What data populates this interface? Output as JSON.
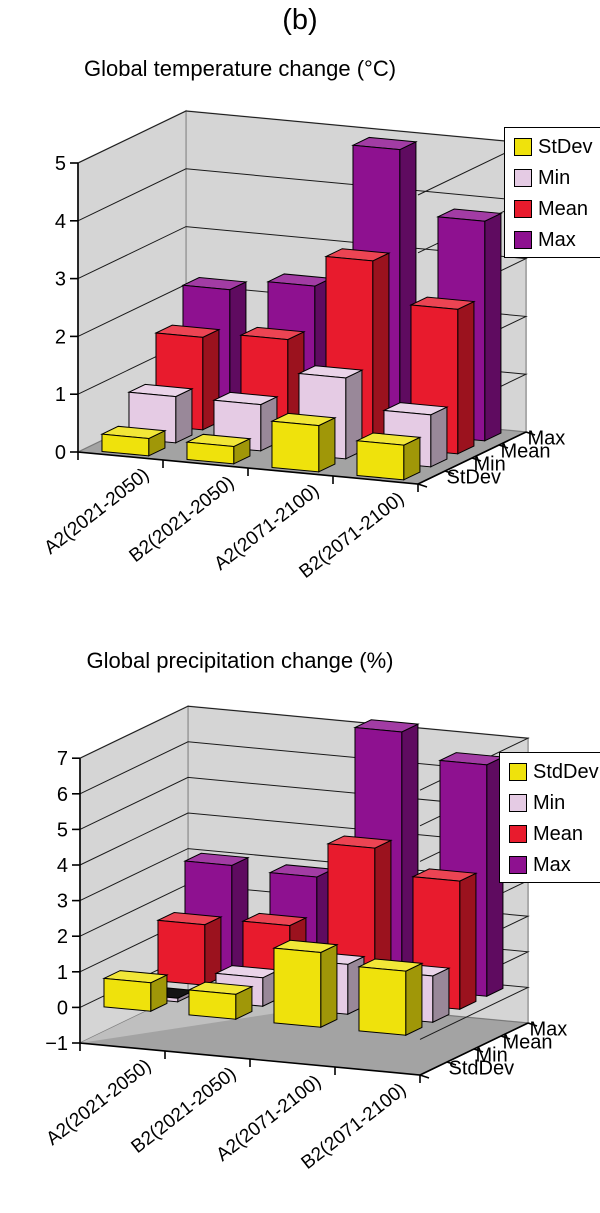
{
  "page_title": "(b)",
  "chart_data": [
    {
      "type": "bar",
      "projection": "3d",
      "title": "Global temperature change (°C)",
      "categories": [
        "A2(2021-2050)",
        "B2(2021-2050)",
        "A2(2071-2100)",
        "B2(2071-2100)"
      ],
      "series": [
        {
          "name": "StDev",
          "color": "#efe20c",
          "values": [
            0.3,
            0.3,
            0.8,
            0.6
          ]
        },
        {
          "name": "Min",
          "color": "#e5cbe4",
          "values": [
            0.8,
            0.8,
            1.4,
            0.9
          ]
        },
        {
          "name": "Mean",
          "color": "#e81b2d",
          "values": [
            1.6,
            1.7,
            3.2,
            2.5
          ]
        },
        {
          "name": "Max",
          "color": "#8e1190",
          "values": [
            2.2,
            2.4,
            4.9,
            3.8
          ]
        }
      ],
      "depth_axis_labels": [
        "StDev",
        "Min",
        "Mean",
        "Max"
      ],
      "legend": {
        "position": "upper-right",
        "labels": [
          "StDev",
          "Min",
          "Mean",
          "Max"
        ]
      },
      "ylim": [
        0,
        5
      ],
      "yticks": [
        0,
        1,
        2,
        3,
        4,
        5
      ],
      "grid": true
    },
    {
      "type": "bar",
      "projection": "3d",
      "title": "Global precipitation change (%)",
      "categories": [
        "A2(2021-2050)",
        "B2(2021-2050)",
        "A2(2071-2100)",
        "B2(2071-2100)"
      ],
      "series": [
        {
          "name": "StdDev",
          "color": "#efe20c",
          "values": [
            0.8,
            0.7,
            2.1,
            1.8
          ]
        },
        {
          "name": "Min",
          "color": "#e5cbe4",
          "values": [
            -0.1,
            0.8,
            1.4,
            1.3
          ]
        },
        {
          "name": "Mean",
          "color": "#e81b2d",
          "values": [
            1.7,
            1.9,
            4.3,
            3.6
          ]
        },
        {
          "name": "Max",
          "color": "#8e1190",
          "values": [
            3.0,
            2.9,
            7.2,
            6.5
          ]
        }
      ],
      "depth_axis_labels": [
        "StdDev",
        "Min",
        "Mean",
        "Max"
      ],
      "legend": {
        "position": "upper-right",
        "labels": [
          "StdDev",
          "Min",
          "Mean",
          "Max"
        ]
      },
      "ylim": [
        -1,
        7
      ],
      "yticks": [
        -1,
        0,
        1,
        2,
        3,
        4,
        5,
        6,
        7
      ],
      "grid": true
    }
  ]
}
